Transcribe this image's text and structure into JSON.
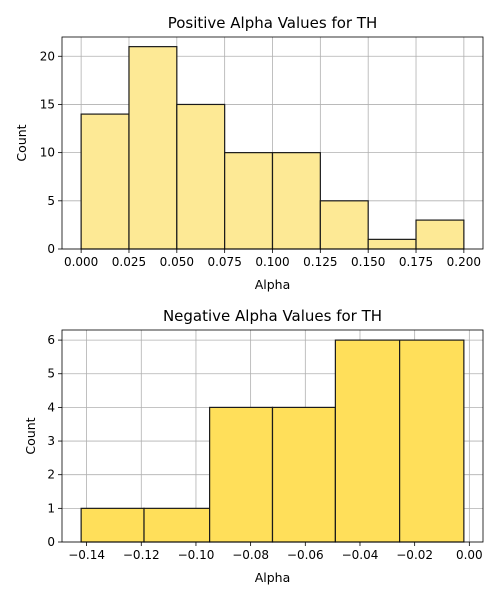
{
  "chart_data": [
    {
      "type": "bar",
      "title": "Positive Alpha Values for TH",
      "xlabel": "Alpha",
      "ylabel": "Count",
      "bin_edges": [
        0.0,
        0.025,
        0.05,
        0.075,
        0.1,
        0.125,
        0.15,
        0.175,
        0.2
      ],
      "values": [
        14,
        21,
        15,
        10,
        10,
        5,
        1,
        3
      ],
      "xlim": [
        -0.01,
        0.21
      ],
      "ylim": [
        0,
        22
      ],
      "xticks": [
        0.0,
        0.025,
        0.05,
        0.075,
        0.1,
        0.125,
        0.15,
        0.175,
        0.2
      ],
      "xtick_labels": [
        "0.000",
        "0.025",
        "0.050",
        "0.075",
        "0.100",
        "0.125",
        "0.150",
        "0.175",
        "0.200"
      ],
      "yticks": [
        0,
        5,
        10,
        15,
        20
      ],
      "ytick_labels": [
        "0",
        "5",
        "10",
        "15",
        "20"
      ],
      "grid": true,
      "bar_color": "#fde995",
      "edge_color": "#1a1a1a"
    },
    {
      "type": "bar",
      "title": "Negative Alpha Values for TH",
      "xlabel": "Alpha",
      "ylabel": "Count",
      "bin_edges": [
        -0.142,
        -0.119,
        -0.095,
        -0.072,
        -0.049,
        -0.0255,
        -0.002
      ],
      "values": [
        1,
        1,
        4,
        4,
        6,
        6
      ],
      "xlim": [
        -0.149,
        0.005
      ],
      "ylim": [
        0,
        6.3
      ],
      "xticks": [
        -0.14,
        -0.12,
        -0.1,
        -0.08,
        -0.06,
        -0.04,
        -0.02,
        0.0
      ],
      "xtick_labels": [
        "−0.14",
        "−0.12",
        "−0.10",
        "−0.08",
        "−0.06",
        "−0.04",
        "−0.02",
        "0.00"
      ],
      "yticks": [
        0,
        1,
        2,
        3,
        4,
        5,
        6
      ],
      "ytick_labels": [
        "0",
        "1",
        "2",
        "3",
        "4",
        "5",
        "6"
      ],
      "grid": true,
      "bar_color": "#ffdf5a",
      "edge_color": "#1a1a1a"
    }
  ]
}
